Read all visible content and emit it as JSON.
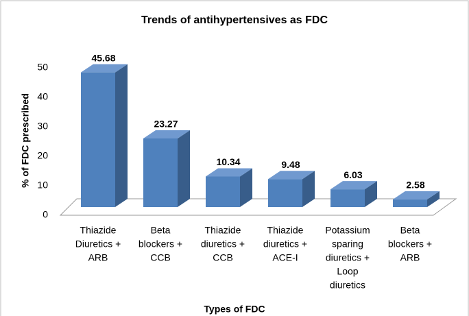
{
  "chart_data": {
    "type": "bar3d",
    "title": "Trends of antihypertensives as FDC",
    "x_label": "Types of FDC",
    "y_label": "% of FDC prescribed",
    "categories": [
      [
        "Thiazide",
        "Diuretics +",
        "ARB"
      ],
      [
        "Beta",
        "blockers +",
        "CCB"
      ],
      [
        "Thiazide",
        "diuretics +",
        "CCB"
      ],
      [
        "Thiazide",
        "diuretics +",
        "ACE-I"
      ],
      [
        "Potassium",
        "sparing",
        "diuretics +",
        "Loop",
        "diuretics"
      ],
      [
        "Beta",
        "blockers +",
        "ARB"
      ]
    ],
    "values": [
      45.68,
      23.27,
      10.34,
      9.48,
      6.03,
      2.58
    ],
    "color": "#4f81bd",
    "top_color": "#7099cf",
    "side_color": "#385d8a",
    "ylim": [
      0,
      50
    ],
    "yticks": [
      0,
      10,
      20,
      30,
      40,
      50
    ],
    "grid": false
  }
}
